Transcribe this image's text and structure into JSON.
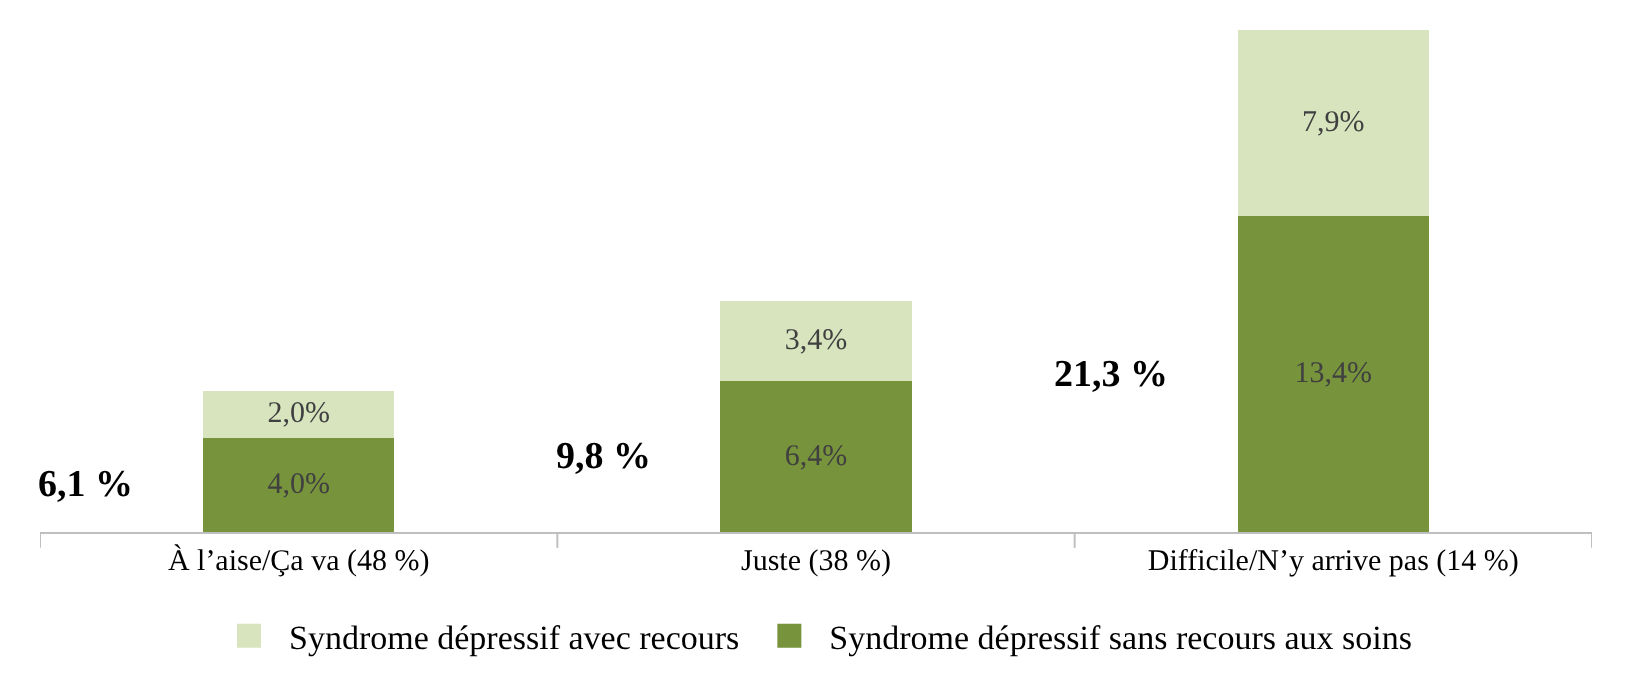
{
  "chart_data": {
    "type": "bar",
    "stacked": true,
    "categories": [
      "À l’aise/Ça va (48 %)",
      "Juste (38 %)",
      "Difficile/N’y arrive pas (14 %)"
    ],
    "series": [
      {
        "name": "Syndrome dépressif sans recours aux soins",
        "color": "#77933c",
        "values": [
          4.0,
          6.4,
          13.4
        ],
        "value_labels": [
          "4,0%",
          "6,4%",
          "13,4%"
        ]
      },
      {
        "name": "Syndrome dépressif avec recours",
        "color": "#d7e4bd",
        "values": [
          2.0,
          3.4,
          7.9
        ],
        "value_labels": [
          "2,0%",
          "3,4%",
          "7,9%"
        ]
      }
    ],
    "totals": [
      "6,1 %",
      "9,8 %",
      "21,3 %"
    ],
    "legend": "bottom"
  }
}
